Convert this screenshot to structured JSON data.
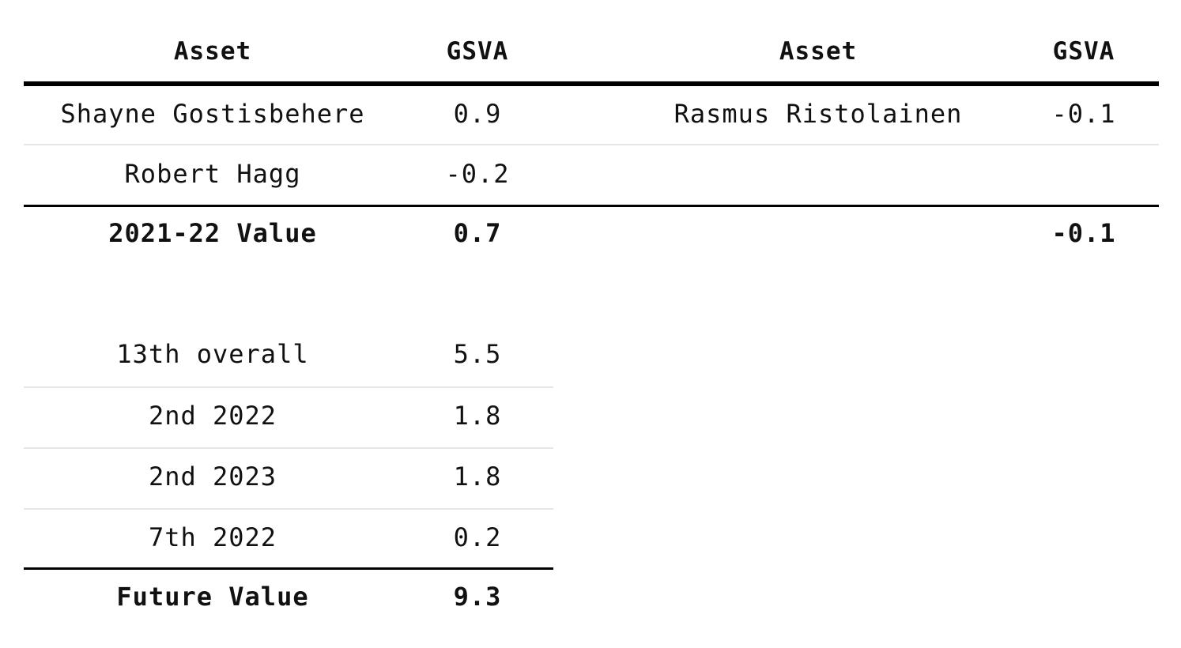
{
  "top_table": {
    "headers": [
      "Asset",
      "GSVA",
      "Asset",
      "GSVA"
    ],
    "rows": [
      [
        "Shayne Gostisbehere",
        "0.9",
        "Rasmus Ristolainen",
        "-0.1"
      ],
      [
        "Robert Hagg",
        "-0.2",
        "",
        ""
      ]
    ],
    "total": [
      "2021-22 Value",
      "0.7",
      "",
      "-0.1"
    ]
  },
  "bottom_table": {
    "rows": [
      [
        "13th overall",
        "5.5"
      ],
      [
        "2nd 2022",
        "1.8"
      ],
      [
        "2nd 2023",
        "1.8"
      ],
      [
        "7th 2022",
        "0.2"
      ]
    ],
    "total": [
      "Future Value",
      "9.3"
    ]
  }
}
